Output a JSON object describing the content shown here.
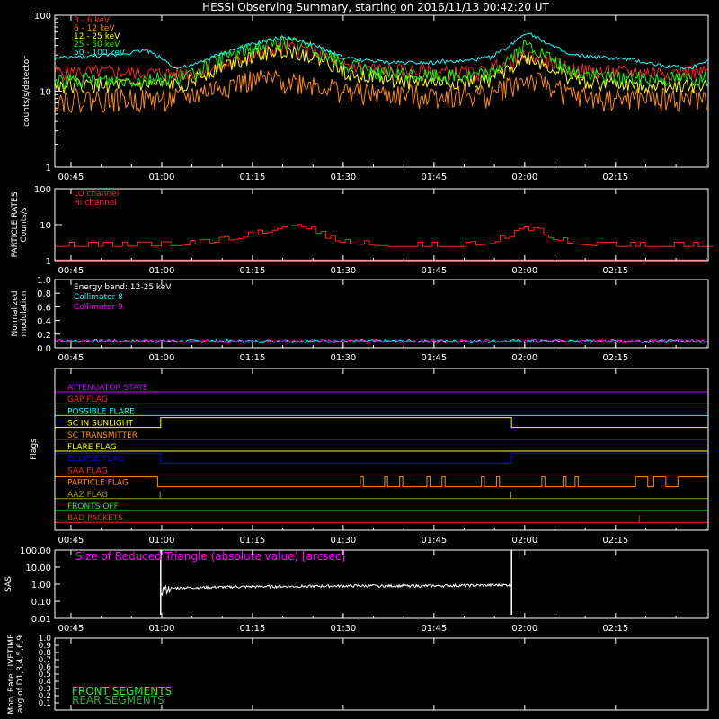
{
  "title": "HESSI Observing Summary, starting on 2016/11/13 00:42:20 UT",
  "x_ticks": [
    "00:45",
    "01:00",
    "01:15",
    "01:30",
    "01:45",
    "02:00",
    "02:15"
  ],
  "colors": {
    "red": "#ff2020",
    "orange": "#ff8c00",
    "yellow": "#ffff00",
    "green": "#00ff00",
    "cyan": "#00ffff",
    "magenta": "#ff00ff",
    "blue": "#0000ff",
    "violet": "#c000ff",
    "olive": "#a0a000",
    "white": "#ffffff",
    "brightgreen": "#22ee22",
    "darkgreen": "#33aa33"
  },
  "chart_data": [
    {
      "type": "line",
      "name": "count_rates",
      "ylabel": "counts/s/detector",
      "yscale": "log",
      "ylim": [
        1,
        100
      ],
      "y_ticks": [
        "100",
        "10",
        "1"
      ],
      "xlim_minutes": [
        0,
        108
      ],
      "series": [
        {
          "name": "3 - 6 keV",
          "color": "#ff2020",
          "x": [
            0,
            10,
            20,
            23,
            28,
            33,
            38,
            42,
            48,
            55,
            62,
            68,
            70,
            72,
            75,
            78,
            82,
            85,
            90,
            95,
            100,
            105,
            108
          ],
          "y": [
            18,
            18,
            17,
            18,
            22,
            30,
            38,
            35,
            22,
            19,
            18,
            18,
            17,
            20,
            24,
            30,
            24,
            20,
            18,
            18,
            18,
            18,
            18
          ]
        },
        {
          "name": "6 - 12 keV",
          "color": "#ff8c00",
          "x": [
            0,
            10,
            20,
            23,
            28,
            33,
            38,
            42,
            48,
            55,
            62,
            68,
            72,
            75,
            78,
            82,
            85,
            90,
            95,
            100,
            105,
            108
          ],
          "y": [
            8,
            8,
            8,
            9,
            12,
            14,
            14,
            13,
            10,
            9,
            9,
            9,
            9,
            12,
            14,
            12,
            9,
            8,
            8,
            8,
            8,
            8
          ]
        },
        {
          "name": "12 - 25 keV",
          "color": "#ffff00",
          "x": [
            0,
            10,
            20,
            23,
            28,
            33,
            38,
            42,
            48,
            55,
            62,
            68,
            72,
            75,
            78,
            82,
            85,
            90,
            95,
            100,
            105,
            108
          ],
          "y": [
            12,
            12,
            12,
            14,
            22,
            30,
            35,
            30,
            18,
            14,
            13,
            13,
            14,
            20,
            28,
            20,
            15,
            13,
            12,
            12,
            12,
            12
          ]
        },
        {
          "name": "25 - 50 keV",
          "color": "#00ff00",
          "x": [
            0,
            10,
            20,
            23,
            28,
            33,
            38,
            42,
            48,
            55,
            62,
            68,
            72,
            75,
            78,
            82,
            85,
            90,
            95,
            100,
            105,
            108
          ],
          "y": [
            14,
            14,
            15,
            17,
            28,
            38,
            45,
            38,
            22,
            17,
            16,
            16,
            17,
            26,
            40,
            26,
            18,
            16,
            15,
            15,
            15,
            15
          ]
        },
        {
          "name": "50 - 100 keV",
          "color": "#00ffff",
          "x": [
            0,
            10,
            15,
            20,
            23,
            28,
            33,
            38,
            42,
            48,
            55,
            62,
            68,
            72,
            75,
            78,
            82,
            85,
            90,
            95,
            100,
            105,
            108
          ],
          "y": [
            27,
            30,
            35,
            20,
            22,
            32,
            42,
            52,
            42,
            27,
            24,
            24,
            25,
            28,
            38,
            60,
            40,
            30,
            28,
            26,
            22,
            20,
            26
          ]
        }
      ]
    },
    {
      "type": "line",
      "name": "particle_rates",
      "ylabel": "PARTICLE RATES\nCounts/s",
      "yscale": "log",
      "ylim": [
        1,
        100
      ],
      "y_ticks": [
        "100",
        "10",
        "1"
      ],
      "series": [
        {
          "name": "LO channel",
          "color": "#ff2020",
          "x": [
            0,
            108
          ],
          "y": [
            1.05,
            1.05
          ]
        },
        {
          "name": "HI channel",
          "color": "#ff2020",
          "x": [
            0,
            10,
            20,
            25,
            30,
            35,
            38,
            40,
            42,
            45,
            48,
            55,
            60,
            68,
            72,
            75,
            78,
            80,
            82,
            85,
            90,
            100,
            108
          ],
          "y": [
            2.5,
            2.5,
            2.6,
            3,
            4,
            6,
            9,
            10,
            7,
            4,
            3,
            2.5,
            2.5,
            2.5,
            3,
            4.5,
            7,
            6,
            4,
            3,
            2.5,
            2.5,
            2.5
          ]
        }
      ]
    },
    {
      "type": "line",
      "name": "modulation",
      "ylabel": "Normalized\nmodulation",
      "ylim": [
        0,
        1
      ],
      "y_ticks": [
        "1.0",
        "0.8",
        "0.6",
        "0.4",
        "0.2",
        "0.0"
      ],
      "annotation": "Energy band: 12-25 keV",
      "series": [
        {
          "name": "Collimator 8",
          "color": "#00ffff",
          "x": [
            0,
            108
          ],
          "y": [
            0.1,
            0.1
          ]
        },
        {
          "name": "Collimator 9",
          "color": "#ff00ff",
          "x": [
            0,
            108
          ],
          "y": [
            0.1,
            0.1
          ]
        }
      ]
    },
    {
      "type": "line",
      "name": "sas",
      "ylabel": "SAS",
      "yscale": "log",
      "ylim": [
        0.01,
        100
      ],
      "y_ticks": [
        "100.00",
        "10.00",
        "1.00",
        "0.10",
        "0.01"
      ],
      "annotation": "Size of Reduced Triangle (absolute value) [arcsec]",
      "series": [
        {
          "name": "Size of Reduced Triangle (absolute value) [arcsec]",
          "color": "#ffffff",
          "x": [
            17.5,
            17.6,
            18,
            20,
            30,
            40,
            50,
            60,
            70,
            75.5,
            75.6
          ],
          "y": [
            100,
            0.4,
            0.5,
            0.6,
            0.7,
            0.75,
            0.8,
            0.8,
            0.85,
            0.9,
            100
          ]
        }
      ]
    },
    {
      "type": "line",
      "name": "livetime",
      "ylabel": "Mon. Rate LIVETIME\navg of D1,3,4,5,6,9",
      "ylim": [
        0,
        1
      ],
      "y_ticks": [
        "1.0",
        "0.9",
        "0.8",
        "0.7",
        "0.6",
        "0.5",
        "0.4",
        "0.3",
        "0.2",
        "0.1"
      ],
      "series": [
        {
          "name": "FRONT SEGMENTS",
          "color": "#22ee22",
          "x": [],
          "y": []
        },
        {
          "name": "REAR SEGMENTS",
          "color": "#33aa33",
          "x": [],
          "y": []
        }
      ]
    }
  ],
  "flags": {
    "ylabel": "Flags",
    "rows": [
      {
        "label": "ATTENUATOR STATE",
        "color": "#c000ff"
      },
      {
        "label": "GAP FLAG",
        "color": "#ff2020"
      },
      {
        "label": "POSSIBLE FLARE",
        "color": "#00ffff"
      },
      {
        "label": "SC IN SUNLIGHT",
        "color": "#ffff00",
        "high": [
          [
            17.5,
            75.5
          ]
        ]
      },
      {
        "label": "SC TRANSMITTER",
        "color": "#ff8c00"
      },
      {
        "label": "FLARE FLAG",
        "color": "#ffff00"
      },
      {
        "label": "ECLIPSE FLAG",
        "color": "#0000ff",
        "high": [
          [
            0,
            17.5
          ],
          [
            75.5,
            108
          ]
        ]
      },
      {
        "label": "SAA FLAG",
        "color": "#ff2020"
      },
      {
        "label": "PARTICLE FLAG",
        "color": "#ff8c00",
        "high": [
          [
            0,
            17
          ],
          [
            50.5,
            51
          ],
          [
            54.5,
            55
          ],
          [
            57,
            57.5
          ],
          [
            61.5,
            62
          ],
          [
            64,
            64.5
          ],
          [
            70.5,
            71
          ],
          [
            73,
            73.5
          ],
          [
            80.5,
            81
          ],
          [
            84,
            84.5
          ],
          [
            86,
            86.5
          ],
          [
            96,
            98
          ],
          [
            99,
            101
          ],
          [
            103,
            108
          ]
        ]
      },
      {
        "label": "AAZ FLAG",
        "color": "#a0a000",
        "spikes": [
          17.4,
          75.4
        ]
      },
      {
        "label": "FRONTS OFF",
        "color": "#00ff00"
      },
      {
        "label": "BAD PACKETS",
        "color": "#ff2020",
        "spikes": [
          96.6
        ]
      }
    ]
  }
}
